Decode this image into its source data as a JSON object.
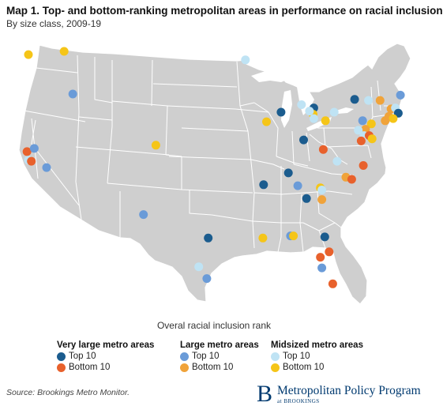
{
  "title": "Map 1. Top- and bottom-ranking metropolitan areas in performance on racial inclusion",
  "subtitle": "By size class, 2009-19",
  "caption": "Overal racial inclusion rank",
  "colors": {
    "land": "#cfcfcf",
    "border": "#ffffff",
    "very_large_top": "#1b5c8e",
    "very_large_bottom": "#e8612c",
    "large_top": "#6a9bd8",
    "large_bottom": "#f0a33a",
    "midsized_top": "#bfe3f4",
    "midsized_bottom": "#f5c518"
  },
  "legend": [
    {
      "title": "Very large metro areas",
      "items": [
        {
          "label": "Top 10",
          "color_key": "very_large_top"
        },
        {
          "label": "Bottom 10",
          "color_key": "very_large_bottom"
        }
      ]
    },
    {
      "title": "Large metro areas",
      "items": [
        {
          "label": "Top 10",
          "color_key": "large_top"
        },
        {
          "label": "Bottom 10",
          "color_key": "large_bottom"
        }
      ]
    },
    {
      "title": "Midsized metro areas",
      "items": [
        {
          "label": "Top 10",
          "color_key": "midsized_top"
        },
        {
          "label": "Bottom 10",
          "color_key": "midsized_bottom"
        }
      ]
    }
  ],
  "source": "Source: Brookings Metro Monitor.",
  "brand": {
    "name": "Metropolitan Policy Program",
    "sub": "at BROOKINGS",
    "logo": "B"
  },
  "metro_markers": [
    {
      "cat": "midsized_bottom",
      "lon": -122.3,
      "lat": 47.3
    },
    {
      "cat": "midsized_bottom",
      "lon": -117.4,
      "lat": 47.6
    },
    {
      "cat": "large_top",
      "lon": -116.2,
      "lat": 43.6
    },
    {
      "cat": "midsized_top",
      "lon": -92.5,
      "lat": 46.8
    },
    {
      "cat": "very_large_bottom",
      "lon": -122.5,
      "lat": 38.2
    },
    {
      "cat": "large_top",
      "lon": -121.5,
      "lat": 38.5
    },
    {
      "cat": "midsized_top",
      "lon": -122.3,
      "lat": 37.4
    },
    {
      "cat": "very_large_bottom",
      "lon": -121.9,
      "lat": 37.3
    },
    {
      "cat": "large_top",
      "lon": -119.8,
      "lat": 36.7
    },
    {
      "cat": "midsized_bottom",
      "lon": -104.8,
      "lat": 38.8
    },
    {
      "cat": "very_large_top",
      "lon": -87.6,
      "lat": 41.9
    },
    {
      "cat": "very_large_top",
      "lon": -83.1,
      "lat": 42.3
    },
    {
      "cat": "midsized_bottom",
      "lon": -83.2,
      "lat": 41.7
    },
    {
      "cat": "midsized_top",
      "lon": -84.8,
      "lat": 42.6
    },
    {
      "cat": "midsized_top",
      "lon": -83.7,
      "lat": 42.0
    },
    {
      "cat": "midsized_top",
      "lon": -83.1,
      "lat": 41.3
    },
    {
      "cat": "midsized_bottom",
      "lon": -89.6,
      "lat": 41.0
    },
    {
      "cat": "midsized_top",
      "lon": -80.3,
      "lat": 41.9
    },
    {
      "cat": "midsized_bottom",
      "lon": -81.5,
      "lat": 41.1
    },
    {
      "cat": "very_large_top",
      "lon": -84.5,
      "lat": 39.3
    },
    {
      "cat": "very_large_bottom",
      "lon": -81.8,
      "lat": 38.4
    },
    {
      "cat": "midsized_top",
      "lon": -79.9,
      "lat": 37.3
    },
    {
      "cat": "very_large_top",
      "lon": -77.5,
      "lat": 43.1
    },
    {
      "cat": "midsized_top",
      "lon": -75.6,
      "lat": 43.0
    },
    {
      "cat": "large_bottom",
      "lon": -74.0,
      "lat": 43.0
    },
    {
      "cat": "large_top",
      "lon": -71.2,
      "lat": 43.5
    },
    {
      "cat": "large_bottom",
      "lon": -72.5,
      "lat": 42.2
    },
    {
      "cat": "midsized_top",
      "lon": -71.9,
      "lat": 42.3
    },
    {
      "cat": "very_large_top",
      "lon": -71.5,
      "lat": 41.8
    },
    {
      "cat": "large_bottom",
      "lon": -72.8,
      "lat": 41.5
    },
    {
      "cat": "midsized_bottom",
      "lon": -72.2,
      "lat": 41.3
    },
    {
      "cat": "large_bottom",
      "lon": -73.3,
      "lat": 41.1
    },
    {
      "cat": "large_top",
      "lon": -76.4,
      "lat": 41.1
    },
    {
      "cat": "midsized_bottom",
      "lon": -75.2,
      "lat": 40.8
    },
    {
      "cat": "large_bottom",
      "lon": -76.0,
      "lat": 40.3
    },
    {
      "cat": "midsized_top",
      "lon": -77.0,
      "lat": 40.2
    },
    {
      "cat": "midsized_top",
      "lon": -76.2,
      "lat": 39.7
    },
    {
      "cat": "very_large_bottom",
      "lon": -75.5,
      "lat": 39.7
    },
    {
      "cat": "midsized_bottom",
      "lon": -75.1,
      "lat": 39.4
    },
    {
      "cat": "very_large_bottom",
      "lon": -76.6,
      "lat": 39.2
    },
    {
      "cat": "very_large_bottom",
      "lon": -76.3,
      "lat": 36.9
    },
    {
      "cat": "large_bottom",
      "lon": -78.7,
      "lat": 35.8
    },
    {
      "cat": "very_large_bottom",
      "lon": -77.9,
      "lat": 35.6
    },
    {
      "cat": "very_large_top",
      "lon": -86.6,
      "lat": 36.2
    },
    {
      "cat": "very_large_top",
      "lon": -90.0,
      "lat": 35.1
    },
    {
      "cat": "large_top",
      "lon": -85.3,
      "lat": 35.0
    },
    {
      "cat": "midsized_bottom",
      "lon": -82.2,
      "lat": 34.8
    },
    {
      "cat": "midsized_top",
      "lon": -82.0,
      "lat": 34.6
    },
    {
      "cat": "very_large_top",
      "lon": -84.1,
      "lat": 33.8
    },
    {
      "cat": "large_bottom",
      "lon": -82.0,
      "lat": 33.7
    },
    {
      "cat": "midsized_bottom",
      "lon": -90.1,
      "lat": 30.1
    },
    {
      "cat": "large_top",
      "lon": -86.3,
      "lat": 30.3
    },
    {
      "cat": "midsized_bottom",
      "lon": -85.9,
      "lat": 30.3
    },
    {
      "cat": "very_large_top",
      "lon": -81.6,
      "lat": 30.2
    },
    {
      "cat": "very_large_bottom",
      "lon": -81.0,
      "lat": 28.8
    },
    {
      "cat": "very_large_bottom",
      "lon": -82.2,
      "lat": 28.3
    },
    {
      "cat": "large_top",
      "lon": -82.0,
      "lat": 27.3
    },
    {
      "cat": "very_large_bottom",
      "lon": -80.5,
      "lat": 25.8
    },
    {
      "cat": "large_top",
      "lon": -106.5,
      "lat": 32.3
    },
    {
      "cat": "very_large_top",
      "lon": -97.6,
      "lat": 30.1
    },
    {
      "cat": "midsized_top",
      "lon": -98.9,
      "lat": 27.4
    },
    {
      "cat": "large_top",
      "lon": -97.8,
      "lat": 26.3
    }
  ]
}
